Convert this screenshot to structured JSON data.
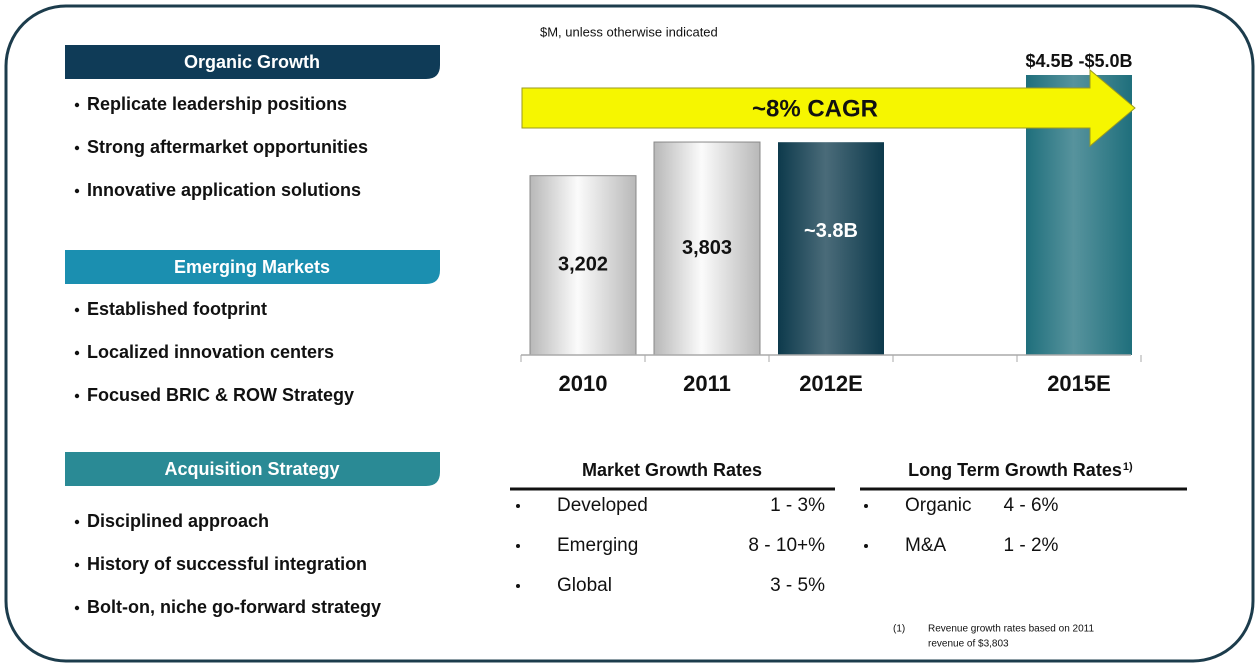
{
  "chart_data": {
    "type": "bar",
    "subtitle": "$M, unless otherwise indicated",
    "annotation": "~8% CAGR",
    "categories": [
      "2010",
      "2011",
      "2012E",
      null,
      "2015E"
    ],
    "values": [
      3202,
      3803,
      3800,
      null,
      5000
    ],
    "value_labels": [
      "3,202",
      "3,803",
      "~3.8B",
      null,
      "$4.5B -$5.0B"
    ],
    "colors": [
      "#b8b8b8",
      "#b8b8b8",
      "#0d3a4c",
      null,
      "#1f6f7c"
    ]
  },
  "sections": [
    {
      "title": "Organic Growth",
      "color": "#0f3b57",
      "items": [
        "Replicate leadership positions",
        "Strong aftermarket opportunities",
        "Innovative application solutions"
      ]
    },
    {
      "title": "Emerging Markets",
      "color": "#1b8fb0",
      "items": [
        "Established footprint",
        "Localized innovation centers",
        "Focused BRIC & ROW Strategy"
      ]
    },
    {
      "title": "Acquisition Strategy",
      "color": "#2a8a95",
      "items": [
        "Disciplined approach",
        "History of successful integration",
        "Bolt-on, niche go-forward strategy"
      ]
    }
  ],
  "tables": [
    {
      "title": "Market Growth Rates",
      "rows": [
        [
          "Developed",
          "1 - 3%"
        ],
        [
          "Emerging",
          "8 - 10+%"
        ],
        [
          "Global",
          "3 - 5%"
        ]
      ]
    },
    {
      "title": "Long Term Growth Rates",
      "note": "1)",
      "rows": [
        [
          "Organic",
          "4 - 6%"
        ],
        [
          "M&A",
          "1 - 2%"
        ]
      ]
    }
  ],
  "footnote": {
    "marker": "(1)",
    "lines": [
      "Revenue growth rates based on 2011",
      "revenue of $3,803"
    ]
  }
}
